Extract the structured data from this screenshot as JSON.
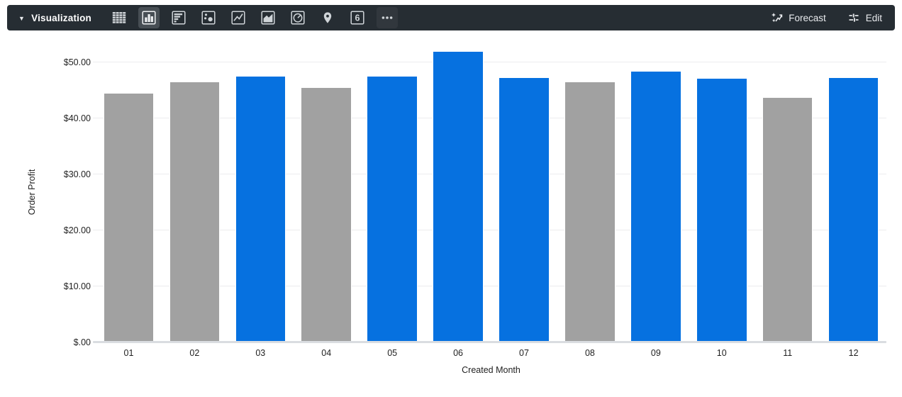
{
  "toolbar": {
    "bg_color": "#262d33",
    "selected_bg_color": "#474e54",
    "icon_color": "#cfd4d8",
    "title": "Visualization",
    "chart_type_icons": [
      {
        "name": "table",
        "selected": false
      },
      {
        "name": "column-chart",
        "selected": true
      },
      {
        "name": "bar-chart-horizontal",
        "selected": false
      },
      {
        "name": "scatter-plot",
        "selected": false
      },
      {
        "name": "line-chart",
        "selected": false
      },
      {
        "name": "area-chart",
        "selected": false
      },
      {
        "name": "pie-chart",
        "selected": false
      },
      {
        "name": "map-pin",
        "selected": false
      },
      {
        "name": "single-value",
        "selected": false,
        "label": "6"
      },
      {
        "name": "more-options",
        "selected": false,
        "subtle_bg": true
      }
    ],
    "forecast_label": "Forecast",
    "edit_label": "Edit"
  },
  "chart_data": {
    "type": "bar",
    "title": "",
    "xlabel": "Created Month",
    "ylabel": "Order Profit",
    "categories": [
      "01",
      "02",
      "03",
      "04",
      "05",
      "06",
      "07",
      "08",
      "09",
      "10",
      "11",
      "12"
    ],
    "values": [
      44.5,
      46.5,
      47.5,
      45.5,
      47.5,
      52.0,
      47.3,
      46.6,
      48.5,
      47.2,
      43.7,
      47.3
    ],
    "bar_color_names": [
      "gray",
      "gray",
      "blue",
      "gray",
      "blue",
      "blue",
      "blue",
      "gray",
      "blue",
      "blue",
      "gray",
      "blue"
    ],
    "colors": {
      "blue": "#0671e0",
      "gray": "#a1a1a1"
    },
    "y_ticks": [
      {
        "label": "$.00",
        "value": 0
      },
      {
        "label": "$10.00",
        "value": 10
      },
      {
        "label": "$20.00",
        "value": 20
      },
      {
        "label": "$30.00",
        "value": 30
      },
      {
        "label": "$40.00",
        "value": 40
      },
      {
        "label": "$50.00",
        "value": 50
      }
    ],
    "ylim": [
      0,
      53.5
    ],
    "grid": true,
    "legend": "none"
  }
}
